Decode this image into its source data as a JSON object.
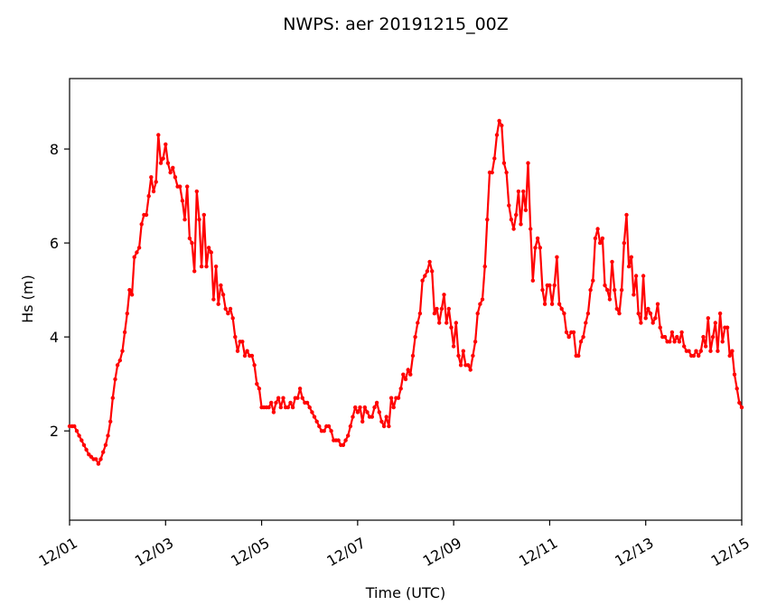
{
  "chart_data": {
    "type": "line",
    "title": "NWPS: aer 20191215_00Z",
    "xlabel": "Time (UTC)",
    "ylabel": "Hs (m)",
    "x_unit": "days",
    "xlim": [
      0,
      14
    ],
    "ylim": [
      0.1,
      9.5
    ],
    "x_ticks": [
      {
        "value": 0,
        "label": "12/01"
      },
      {
        "value": 2,
        "label": "12/03"
      },
      {
        "value": 4,
        "label": "12/05"
      },
      {
        "value": 6,
        "label": "12/07"
      },
      {
        "value": 8,
        "label": "12/09"
      },
      {
        "value": 10,
        "label": "12/11"
      },
      {
        "value": 12,
        "label": "12/13"
      },
      {
        "value": 14,
        "label": "12/15"
      }
    ],
    "y_ticks": [
      {
        "value": 2,
        "label": "2"
      },
      {
        "value": 4,
        "label": "4"
      },
      {
        "value": 6,
        "label": "6"
      },
      {
        "value": 8,
        "label": "8"
      }
    ],
    "grid": false,
    "legend": "none",
    "series": [
      {
        "color": "#ff0000",
        "marker": "dot",
        "points": [
          [
            0.0,
            2.1
          ],
          [
            0.05,
            2.1
          ],
          [
            0.1,
            2.1
          ],
          [
            0.15,
            2.0
          ],
          [
            0.2,
            1.9
          ],
          [
            0.25,
            1.8
          ],
          [
            0.3,
            1.7
          ],
          [
            0.35,
            1.6
          ],
          [
            0.4,
            1.5
          ],
          [
            0.45,
            1.45
          ],
          [
            0.5,
            1.4
          ],
          [
            0.55,
            1.4
          ],
          [
            0.6,
            1.3
          ],
          [
            0.65,
            1.4
          ],
          [
            0.7,
            1.55
          ],
          [
            0.75,
            1.7
          ],
          [
            0.8,
            1.9
          ],
          [
            0.85,
            2.2
          ],
          [
            0.9,
            2.7
          ],
          [
            0.95,
            3.1
          ],
          [
            1.0,
            3.4
          ],
          [
            1.05,
            3.5
          ],
          [
            1.1,
            3.7
          ],
          [
            1.15,
            4.1
          ],
          [
            1.2,
            4.5
          ],
          [
            1.25,
            5.0
          ],
          [
            1.3,
            4.9
          ],
          [
            1.35,
            5.7
          ],
          [
            1.4,
            5.8
          ],
          [
            1.45,
            5.9
          ],
          [
            1.5,
            6.4
          ],
          [
            1.55,
            6.6
          ],
          [
            1.6,
            6.6
          ],
          [
            1.65,
            7.0
          ],
          [
            1.7,
            7.4
          ],
          [
            1.75,
            7.1
          ],
          [
            1.8,
            7.3
          ],
          [
            1.85,
            8.3
          ],
          [
            1.9,
            7.7
          ],
          [
            1.95,
            7.8
          ],
          [
            2.0,
            8.1
          ],
          [
            2.05,
            7.7
          ],
          [
            2.1,
            7.5
          ],
          [
            2.15,
            7.6
          ],
          [
            2.2,
            7.4
          ],
          [
            2.25,
            7.2
          ],
          [
            2.3,
            7.2
          ],
          [
            2.35,
            6.9
          ],
          [
            2.4,
            6.5
          ],
          [
            2.45,
            7.2
          ],
          [
            2.5,
            6.1
          ],
          [
            2.55,
            6.0
          ],
          [
            2.6,
            5.4
          ],
          [
            2.65,
            7.1
          ],
          [
            2.7,
            6.5
          ],
          [
            2.75,
            5.5
          ],
          [
            2.8,
            6.6
          ],
          [
            2.85,
            5.5
          ],
          [
            2.9,
            5.9
          ],
          [
            2.95,
            5.8
          ],
          [
            3.0,
            4.8
          ],
          [
            3.05,
            5.5
          ],
          [
            3.1,
            4.7
          ],
          [
            3.15,
            5.1
          ],
          [
            3.2,
            4.9
          ],
          [
            3.25,
            4.6
          ],
          [
            3.3,
            4.5
          ],
          [
            3.35,
            4.6
          ],
          [
            3.4,
            4.4
          ],
          [
            3.45,
            4.0
          ],
          [
            3.5,
            3.7
          ],
          [
            3.55,
            3.9
          ],
          [
            3.6,
            3.9
          ],
          [
            3.65,
            3.6
          ],
          [
            3.7,
            3.7
          ],
          [
            3.75,
            3.6
          ],
          [
            3.8,
            3.6
          ],
          [
            3.85,
            3.4
          ],
          [
            3.9,
            3.0
          ],
          [
            3.95,
            2.9
          ],
          [
            4.0,
            2.5
          ],
          [
            4.05,
            2.5
          ],
          [
            4.1,
            2.5
          ],
          [
            4.15,
            2.5
          ],
          [
            4.2,
            2.6
          ],
          [
            4.25,
            2.4
          ],
          [
            4.3,
            2.6
          ],
          [
            4.35,
            2.7
          ],
          [
            4.4,
            2.5
          ],
          [
            4.45,
            2.7
          ],
          [
            4.5,
            2.5
          ],
          [
            4.55,
            2.5
          ],
          [
            4.6,
            2.6
          ],
          [
            4.65,
            2.5
          ],
          [
            4.7,
            2.7
          ],
          [
            4.75,
            2.7
          ],
          [
            4.8,
            2.9
          ],
          [
            4.85,
            2.7
          ],
          [
            4.9,
            2.6
          ],
          [
            4.95,
            2.6
          ],
          [
            5.0,
            2.5
          ],
          [
            5.05,
            2.4
          ],
          [
            5.1,
            2.3
          ],
          [
            5.15,
            2.2
          ],
          [
            5.2,
            2.1
          ],
          [
            5.25,
            2.0
          ],
          [
            5.3,
            2.0
          ],
          [
            5.35,
            2.1
          ],
          [
            5.4,
            2.1
          ],
          [
            5.45,
            2.0
          ],
          [
            5.5,
            1.8
          ],
          [
            5.55,
            1.8
          ],
          [
            5.6,
            1.8
          ],
          [
            5.65,
            1.7
          ],
          [
            5.7,
            1.7
          ],
          [
            5.75,
            1.8
          ],
          [
            5.8,
            1.9
          ],
          [
            5.85,
            2.1
          ],
          [
            5.9,
            2.3
          ],
          [
            5.95,
            2.5
          ],
          [
            6.0,
            2.4
          ],
          [
            6.05,
            2.5
          ],
          [
            6.1,
            2.2
          ],
          [
            6.15,
            2.5
          ],
          [
            6.2,
            2.4
          ],
          [
            6.25,
            2.3
          ],
          [
            6.3,
            2.3
          ],
          [
            6.35,
            2.5
          ],
          [
            6.4,
            2.6
          ],
          [
            6.45,
            2.4
          ],
          [
            6.5,
            2.2
          ],
          [
            6.55,
            2.1
          ],
          [
            6.6,
            2.3
          ],
          [
            6.65,
            2.1
          ],
          [
            6.7,
            2.7
          ],
          [
            6.75,
            2.5
          ],
          [
            6.8,
            2.7
          ],
          [
            6.85,
            2.7
          ],
          [
            6.9,
            2.9
          ],
          [
            6.95,
            3.2
          ],
          [
            7.0,
            3.1
          ],
          [
            7.05,
            3.3
          ],
          [
            7.1,
            3.2
          ],
          [
            7.15,
            3.6
          ],
          [
            7.2,
            4.0
          ],
          [
            7.25,
            4.3
          ],
          [
            7.3,
            4.5
          ],
          [
            7.35,
            5.2
          ],
          [
            7.4,
            5.3
          ],
          [
            7.45,
            5.4
          ],
          [
            7.5,
            5.6
          ],
          [
            7.55,
            5.4
          ],
          [
            7.6,
            4.5
          ],
          [
            7.65,
            4.6
          ],
          [
            7.7,
            4.3
          ],
          [
            7.75,
            4.6
          ],
          [
            7.8,
            4.9
          ],
          [
            7.85,
            4.3
          ],
          [
            7.9,
            4.6
          ],
          [
            7.95,
            4.2
          ],
          [
            8.0,
            3.8
          ],
          [
            8.05,
            4.3
          ],
          [
            8.1,
            3.6
          ],
          [
            8.15,
            3.4
          ],
          [
            8.2,
            3.7
          ],
          [
            8.25,
            3.4
          ],
          [
            8.3,
            3.4
          ],
          [
            8.35,
            3.3
          ],
          [
            8.4,
            3.6
          ],
          [
            8.45,
            3.9
          ],
          [
            8.5,
            4.5
          ],
          [
            8.55,
            4.7
          ],
          [
            8.6,
            4.8
          ],
          [
            8.65,
            5.5
          ],
          [
            8.7,
            6.5
          ],
          [
            8.75,
            7.5
          ],
          [
            8.8,
            7.5
          ],
          [
            8.85,
            7.8
          ],
          [
            8.9,
            8.3
          ],
          [
            8.95,
            8.6
          ],
          [
            9.0,
            8.5
          ],
          [
            9.05,
            7.7
          ],
          [
            9.1,
            7.5
          ],
          [
            9.15,
            6.8
          ],
          [
            9.2,
            6.5
          ],
          [
            9.25,
            6.3
          ],
          [
            9.3,
            6.6
          ],
          [
            9.35,
            7.1
          ],
          [
            9.4,
            6.4
          ],
          [
            9.45,
            7.1
          ],
          [
            9.5,
            6.7
          ],
          [
            9.55,
            7.7
          ],
          [
            9.6,
            6.3
          ],
          [
            9.65,
            5.2
          ],
          [
            9.7,
            5.9
          ],
          [
            9.75,
            6.1
          ],
          [
            9.8,
            5.9
          ],
          [
            9.85,
            5.0
          ],
          [
            9.9,
            4.7
          ],
          [
            9.95,
            5.1
          ],
          [
            10.0,
            5.1
          ],
          [
            10.05,
            4.7
          ],
          [
            10.1,
            5.1
          ],
          [
            10.15,
            5.7
          ],
          [
            10.2,
            4.7
          ],
          [
            10.25,
            4.6
          ],
          [
            10.3,
            4.5
          ],
          [
            10.35,
            4.1
          ],
          [
            10.4,
            4.0
          ],
          [
            10.45,
            4.1
          ],
          [
            10.5,
            4.1
          ],
          [
            10.55,
            3.6
          ],
          [
            10.6,
            3.6
          ],
          [
            10.65,
            3.9
          ],
          [
            10.7,
            4.0
          ],
          [
            10.75,
            4.3
          ],
          [
            10.8,
            4.5
          ],
          [
            10.85,
            5.0
          ],
          [
            10.9,
            5.2
          ],
          [
            10.95,
            6.1
          ],
          [
            11.0,
            6.3
          ],
          [
            11.05,
            6.0
          ],
          [
            11.1,
            6.1
          ],
          [
            11.15,
            5.1
          ],
          [
            11.2,
            5.0
          ],
          [
            11.25,
            4.8
          ],
          [
            11.3,
            5.6
          ],
          [
            11.35,
            5.0
          ],
          [
            11.4,
            4.6
          ],
          [
            11.45,
            4.5
          ],
          [
            11.5,
            5.0
          ],
          [
            11.55,
            6.0
          ],
          [
            11.6,
            6.6
          ],
          [
            11.65,
            5.5
          ],
          [
            11.7,
            5.7
          ],
          [
            11.75,
            4.9
          ],
          [
            11.8,
            5.3
          ],
          [
            11.85,
            4.5
          ],
          [
            11.9,
            4.3
          ],
          [
            11.95,
            5.3
          ],
          [
            12.0,
            4.4
          ],
          [
            12.05,
            4.6
          ],
          [
            12.1,
            4.5
          ],
          [
            12.15,
            4.3
          ],
          [
            12.2,
            4.4
          ],
          [
            12.25,
            4.7
          ],
          [
            12.3,
            4.2
          ],
          [
            12.35,
            4.0
          ],
          [
            12.4,
            4.0
          ],
          [
            12.45,
            3.9
          ],
          [
            12.5,
            3.9
          ],
          [
            12.55,
            4.1
          ],
          [
            12.6,
            3.9
          ],
          [
            12.65,
            4.0
          ],
          [
            12.7,
            3.9
          ],
          [
            12.75,
            4.1
          ],
          [
            12.8,
            3.8
          ],
          [
            12.85,
            3.7
          ],
          [
            12.9,
            3.7
          ],
          [
            12.95,
            3.6
          ],
          [
            13.0,
            3.6
          ],
          [
            13.05,
            3.7
          ],
          [
            13.1,
            3.6
          ],
          [
            13.15,
            3.7
          ],
          [
            13.2,
            4.0
          ],
          [
            13.25,
            3.8
          ],
          [
            13.3,
            4.4
          ],
          [
            13.35,
            3.7
          ],
          [
            13.4,
            4.0
          ],
          [
            13.45,
            4.3
          ],
          [
            13.5,
            3.7
          ],
          [
            13.55,
            4.5
          ],
          [
            13.6,
            3.9
          ],
          [
            13.65,
            4.2
          ],
          [
            13.7,
            4.2
          ],
          [
            13.75,
            3.6
          ],
          [
            13.8,
            3.7
          ],
          [
            13.85,
            3.2
          ],
          [
            13.9,
            2.9
          ],
          [
            13.95,
            2.6
          ],
          [
            14.0,
            2.5
          ]
        ]
      }
    ]
  }
}
